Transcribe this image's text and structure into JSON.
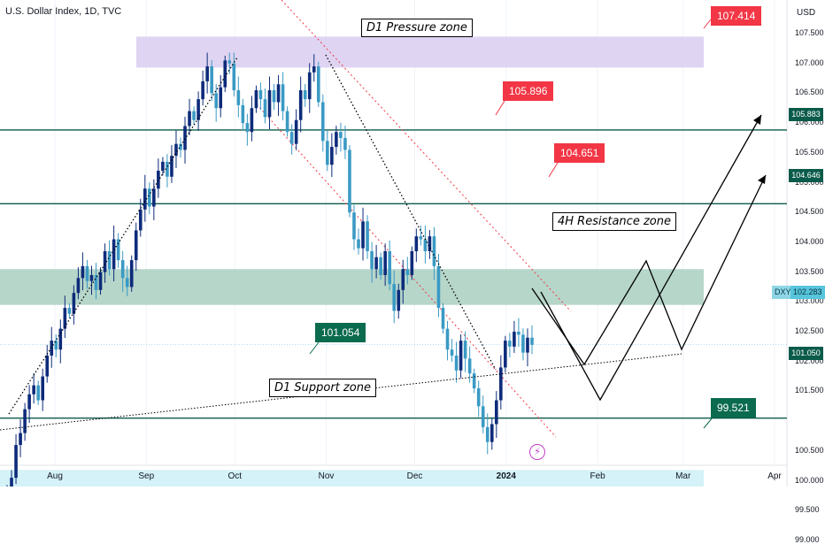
{
  "header": {
    "title": "U.S. Dollar Index, 1D, TVC",
    "currency": "USD"
  },
  "chart_data": {
    "type": "candlestick",
    "symbol": "DXY",
    "last_price": "102.283",
    "y_ticks": [
      "107.500",
      "107.000",
      "106.500",
      "106.000",
      "105.500",
      "105.000",
      "104.500",
      "104.000",
      "103.500",
      "103.000",
      "102.500",
      "102.000",
      "101.500",
      "100.500",
      "100.000",
      "99.500",
      "99.000"
    ],
    "y_range": [
      99.0,
      107.7
    ],
    "x_ticks": [
      {
        "label": "Aug",
        "x": "2023-08-01"
      },
      {
        "label": "Sep",
        "x": "2023-09-01"
      },
      {
        "label": "Oct",
        "x": "2023-10-01"
      },
      {
        "label": "Nov",
        "x": "2023-11-01"
      },
      {
        "label": "Dec",
        "x": "2023-12-01"
      },
      {
        "label": "2024",
        "x": "2024-01-01",
        "bold": true
      },
      {
        "label": "Feb",
        "x": "2024-02-01"
      },
      {
        "label": "Mar",
        "x": "2024-03-01"
      },
      {
        "label": "Apr",
        "x": "2024-04-01"
      }
    ],
    "price_lines": [
      {
        "value": 105.883,
        "label": "105.883"
      },
      {
        "value": 104.646,
        "label": "104.646"
      },
      {
        "value": 101.05,
        "label": "101.050"
      }
    ],
    "price_tags": [
      {
        "label": "107.414",
        "color": "red"
      },
      {
        "label": "105.896",
        "color": "red"
      },
      {
        "label": "104.651",
        "color": "red"
      },
      {
        "label": "101.054",
        "color": "green"
      },
      {
        "label": "99.521",
        "color": "green"
      }
    ],
    "zones": [
      {
        "name": "D1 Pressure zone",
        "from": 106.93,
        "to": 107.45,
        "color": "#d9ccf0"
      },
      {
        "name": "4H Resistance zone",
        "from": 102.95,
        "to": 103.55,
        "color": "#a9cfc1"
      },
      {
        "name": "D1 Support zone",
        "from": 99.52,
        "to": 100.18,
        "color": "#cdf0f7"
      }
    ],
    "bullish_color": "#0d2b7a",
    "bearish_color": "#3a9ac4",
    "candles_close": [
      99.85,
      100.05,
      100.6,
      100.8,
      101.2,
      101.45,
      101.6,
      101.35,
      101.75,
      102.1,
      102.35,
      102.2,
      102.55,
      102.9,
      102.8,
      103.15,
      103.4,
      103.6,
      103.35,
      103.45,
      103.2,
      103.5,
      103.85,
      103.55,
      104.05,
      103.7,
      103.4,
      103.25,
      103.7,
      104.2,
      104.55,
      104.9,
      104.6,
      104.9,
      105.2,
      105.35,
      105.1,
      105.45,
      105.65,
      105.55,
      105.95,
      106.2,
      106.05,
      106.4,
      106.7,
      106.95,
      106.5,
      106.25,
      106.6,
      107.05,
      107.0,
      106.55,
      106.3,
      106.0,
      105.85,
      106.25,
      106.55,
      106.4,
      106.1,
      106.55,
      106.35,
      106.65,
      106.2,
      105.85,
      105.65,
      106.05,
      106.55,
      106.4,
      106.85,
      106.95,
      106.35,
      105.7,
      105.3,
      105.6,
      105.85,
      105.75,
      105.55,
      104.5,
      104.05,
      103.9,
      104.35,
      103.85,
      103.55,
      103.75,
      103.45,
      103.85,
      103.3,
      102.85,
      103.2,
      103.55,
      103.45,
      103.85,
      104.1,
      104.05,
      103.85,
      104.1,
      103.6,
      102.9,
      102.55,
      102.2,
      102.1,
      101.85,
      102.35,
      102.05,
      101.8,
      101.55,
      101.25,
      100.9,
      100.65,
      100.95,
      101.35,
      101.9,
      102.35,
      102.25,
      102.5,
      102.45,
      102.15,
      102.4,
      102.28
    ]
  },
  "annotations": {
    "pressure_label": "D1 Pressure zone",
    "resistance_label": "4H Resistance zone",
    "support_label": "D1 Support zone"
  }
}
